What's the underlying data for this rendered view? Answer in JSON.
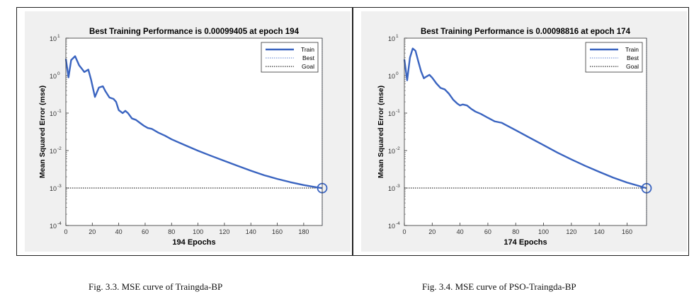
{
  "captions": {
    "left": "Fig. 3.3.  MSE curve of Traingda-BP",
    "right": "Fig. 3.4.  MSE curve of PSO-Traingda-BP"
  },
  "colors": {
    "train": "#3a64c0",
    "best": "#5b7fd0",
    "goal": "#000000",
    "plot_bg": "#ffffff",
    "panel_bg": "#f0f0f0"
  },
  "chart_data": [
    {
      "type": "line",
      "title": "Best Training Performance is 0.00099405 at epoch 194",
      "xlabel": "194 Epochs",
      "ylabel": "Mean Squared Error  (mse)",
      "y_scale": "log",
      "xlim": [
        0,
        194
      ],
      "ylim": [
        0.0001,
        10
      ],
      "xticks": [
        0,
        20,
        40,
        60,
        80,
        100,
        120,
        140,
        160,
        180
      ],
      "yticks": [
        "10",
        "10",
        "10",
        "10",
        "10",
        "10"
      ],
      "ytick_exponents": [
        "1",
        "0",
        "-1",
        "-2",
        "-3",
        "-4"
      ],
      "ytick_values": [
        10,
        1,
        0.1,
        0.01,
        0.001,
        0.0001
      ],
      "legend": {
        "position": "top-right",
        "entries": [
          "Train",
          "Best",
          "Goal"
        ]
      },
      "goal": 0.001,
      "best": {
        "epoch": 194,
        "value": 0.00099405
      },
      "series": [
        {
          "name": "Train",
          "x": [
            0,
            2,
            4,
            7,
            10,
            14,
            17,
            19,
            22,
            25,
            28,
            30,
            33,
            36,
            38,
            40,
            43,
            45,
            47,
            50,
            53,
            56,
            59,
            62,
            65,
            70,
            75,
            80,
            90,
            100,
            110,
            120,
            130,
            140,
            150,
            160,
            170,
            180,
            188,
            194
          ],
          "y": [
            2.8,
            0.9,
            2.6,
            3.3,
            1.9,
            1.25,
            1.45,
            0.8,
            0.27,
            0.48,
            0.52,
            0.38,
            0.26,
            0.24,
            0.2,
            0.12,
            0.1,
            0.115,
            0.1,
            0.072,
            0.066,
            0.055,
            0.046,
            0.04,
            0.038,
            0.03,
            0.025,
            0.02,
            0.014,
            0.0099,
            0.0072,
            0.0053,
            0.0039,
            0.0029,
            0.0022,
            0.00175,
            0.00143,
            0.0012,
            0.00107,
            0.00099
          ]
        }
      ]
    },
    {
      "type": "line",
      "title": "Best Training Performance is 0.00098816 at epoch 174",
      "xlabel": "174 Epochs",
      "ylabel": "Mean Squared Error  (mse)",
      "y_scale": "log",
      "xlim": [
        0,
        174
      ],
      "ylim": [
        0.0001,
        10
      ],
      "xticks": [
        0,
        20,
        40,
        60,
        80,
        100,
        120,
        140,
        160
      ],
      "yticks": [
        "10",
        "10",
        "10",
        "10",
        "10",
        "10"
      ],
      "ytick_exponents": [
        "1",
        "0",
        "-1",
        "-2",
        "-3",
        "-4"
      ],
      "ytick_values": [
        10,
        1,
        0.1,
        0.01,
        0.001,
        0.0001
      ],
      "legend": {
        "position": "top-right",
        "entries": [
          "Train",
          "Best",
          "Goal"
        ]
      },
      "goal": 0.001,
      "best": {
        "epoch": 174,
        "value": 0.00098816
      },
      "series": [
        {
          "name": "Train",
          "x": [
            0,
            2,
            4,
            6,
            8,
            10,
            12,
            14,
            16,
            18,
            20,
            23,
            26,
            29,
            32,
            35,
            38,
            40,
            42,
            45,
            48,
            51,
            55,
            60,
            65,
            70,
            80,
            90,
            100,
            110,
            120,
            130,
            140,
            150,
            160,
            168,
            174
          ],
          "y": [
            2.7,
            0.75,
            3.0,
            5.3,
            4.6,
            2.4,
            1.3,
            0.85,
            0.95,
            1.05,
            0.88,
            0.62,
            0.47,
            0.43,
            0.33,
            0.23,
            0.18,
            0.16,
            0.17,
            0.16,
            0.13,
            0.11,
            0.095,
            0.075,
            0.06,
            0.055,
            0.035,
            0.022,
            0.014,
            0.0088,
            0.0058,
            0.0039,
            0.0027,
            0.0019,
            0.0014,
            0.00115,
            0.00099
          ]
        }
      ]
    }
  ]
}
